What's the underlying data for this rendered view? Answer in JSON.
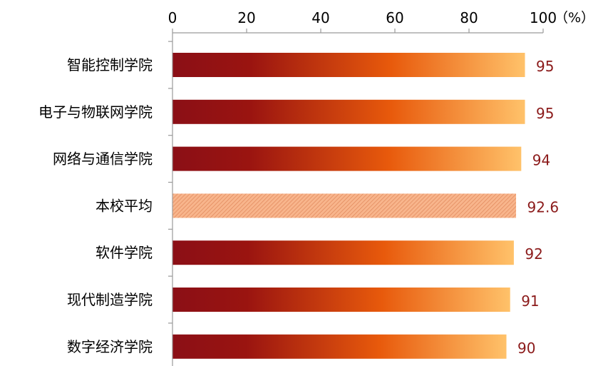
{
  "chart_data": {
    "type": "bar",
    "orientation": "horizontal",
    "categories": [
      "智能控制学院",
      "电子与物联网学院",
      "网络与通信学院",
      "本校平均",
      "软件学院",
      "现代制造学院",
      "数字经济学院"
    ],
    "values": [
      95,
      95,
      94,
      92.6,
      92,
      91,
      90
    ],
    "value_labels": [
      "95",
      "95",
      "94",
      "92.6",
      "92",
      "91",
      "90"
    ],
    "highlight_category": "本校平均",
    "xlim": [
      0,
      100
    ],
    "x_ticks": [
      "0",
      "20",
      "40",
      "60",
      "80",
      "100"
    ],
    "unit_label": "（%）",
    "axis_position": "top",
    "grid": false,
    "legend": "none",
    "colors": {
      "gradient_start": "#8b0f16",
      "gradient_mid": "#e85a0c",
      "gradient_end": "#ffc26a",
      "average_fill": "#f8b58c",
      "average_hatch": "#e0875a",
      "value_text": "#8b1a1a",
      "axis": "#9a9a9a"
    }
  }
}
